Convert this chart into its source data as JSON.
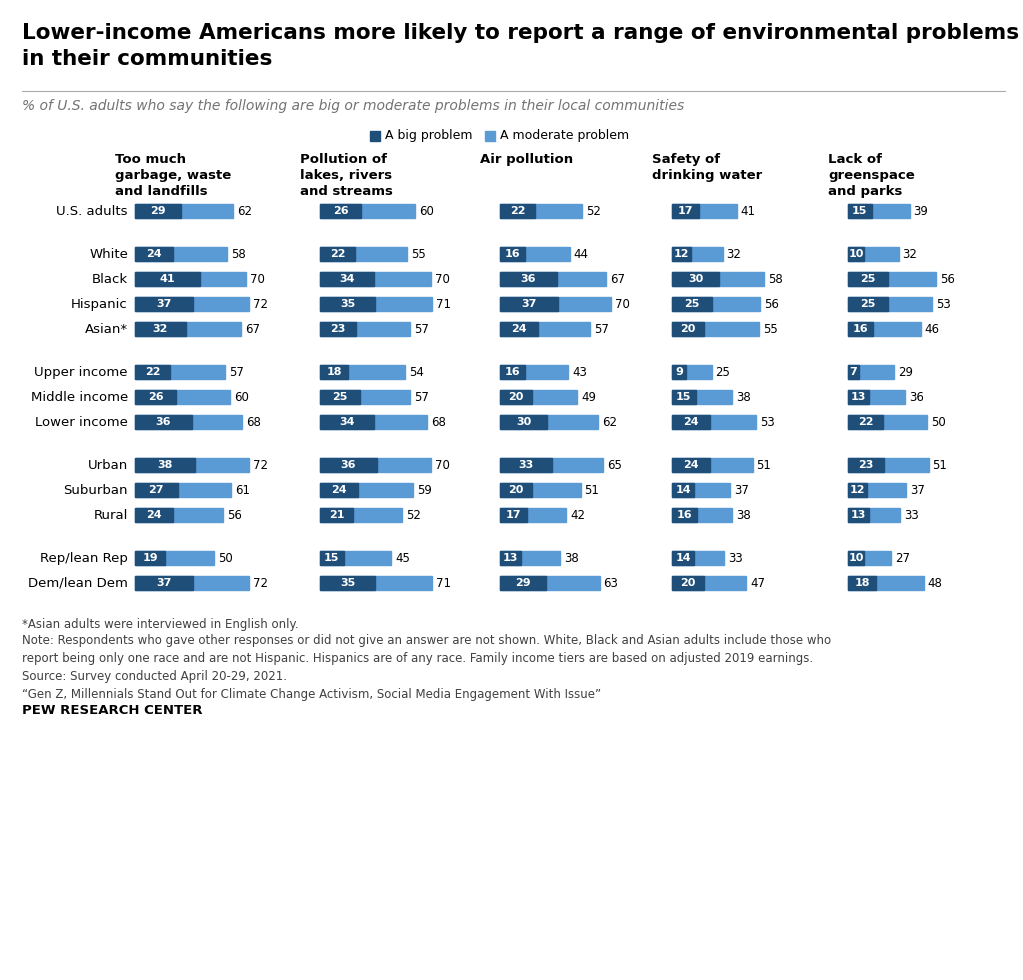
{
  "title": "Lower-income Americans more likely to report a range of environmental problems\nin their communities",
  "subtitle": "% of U.S. adults who say the following are big or moderate problems in their local communities",
  "legend_labels": [
    "A big problem",
    "A moderate problem"
  ],
  "dark_blue": "#1f4e79",
  "light_blue": "#5b9bd5",
  "col_headers": [
    "Too much\ngarbage, waste\nand landfills",
    "Pollution of\nlakes, rivers\nand streams",
    "Air pollution",
    "Safety of\ndrinking water",
    "Lack of\ngreenspace\nand parks"
  ],
  "groups": [
    {
      "rows": [
        "U.S. adults"
      ],
      "data": [
        [
          [
            29,
            62
          ],
          [
            26,
            60
          ],
          [
            22,
            52
          ],
          [
            17,
            41
          ],
          [
            15,
            39
          ]
        ]
      ]
    },
    {
      "rows": [
        "White",
        "Black",
        "Hispanic",
        "Asian*"
      ],
      "data": [
        [
          [
            24,
            58
          ],
          [
            22,
            55
          ],
          [
            16,
            44
          ],
          [
            12,
            32
          ],
          [
            10,
            32
          ]
        ],
        [
          [
            41,
            70
          ],
          [
            34,
            70
          ],
          [
            36,
            67
          ],
          [
            30,
            58
          ],
          [
            25,
            56
          ]
        ],
        [
          [
            37,
            72
          ],
          [
            35,
            71
          ],
          [
            37,
            70
          ],
          [
            25,
            56
          ],
          [
            25,
            53
          ]
        ],
        [
          [
            32,
            67
          ],
          [
            23,
            57
          ],
          [
            24,
            57
          ],
          [
            20,
            55
          ],
          [
            16,
            46
          ]
        ]
      ]
    },
    {
      "rows": [
        "Upper income",
        "Middle income",
        "Lower income"
      ],
      "data": [
        [
          [
            22,
            57
          ],
          [
            18,
            54
          ],
          [
            16,
            43
          ],
          [
            9,
            25
          ],
          [
            7,
            29
          ]
        ],
        [
          [
            26,
            60
          ],
          [
            25,
            57
          ],
          [
            20,
            49
          ],
          [
            15,
            38
          ],
          [
            13,
            36
          ]
        ],
        [
          [
            36,
            68
          ],
          [
            34,
            68
          ],
          [
            30,
            62
          ],
          [
            24,
            53
          ],
          [
            22,
            50
          ]
        ]
      ]
    },
    {
      "rows": [
        "Urban",
        "Suburban",
        "Rural"
      ],
      "data": [
        [
          [
            38,
            72
          ],
          [
            36,
            70
          ],
          [
            33,
            65
          ],
          [
            24,
            51
          ],
          [
            23,
            51
          ]
        ],
        [
          [
            27,
            61
          ],
          [
            24,
            59
          ],
          [
            20,
            51
          ],
          [
            14,
            37
          ],
          [
            12,
            37
          ]
        ],
        [
          [
            24,
            56
          ],
          [
            21,
            52
          ],
          [
            17,
            42
          ],
          [
            16,
            38
          ],
          [
            13,
            33
          ]
        ]
      ]
    },
    {
      "rows": [
        "Rep/lean Rep",
        "Dem/lean Dem"
      ],
      "data": [
        [
          [
            19,
            50
          ],
          [
            15,
            45
          ],
          [
            13,
            38
          ],
          [
            14,
            33
          ],
          [
            10,
            27
          ]
        ],
        [
          [
            37,
            72
          ],
          [
            35,
            71
          ],
          [
            29,
            63
          ],
          [
            20,
            47
          ],
          [
            18,
            48
          ]
        ]
      ]
    }
  ],
  "footnote1": "*Asian adults were interviewed in English only.",
  "footnote2": "Note: Respondents who gave other responses or did not give an answer are not shown. White, Black and Asian adults include those who\nreport being only one race and are not Hispanic. Hispanics are of any race. Family income tiers are based on adjusted 2019 earnings.\nSource: Survey conducted April 20-29, 2021.\n“Gen Z, Millennials Stand Out for Climate Change Activism, Social Media Engagement With Issue”",
  "source_label": "PEW RESEARCH CENTER"
}
